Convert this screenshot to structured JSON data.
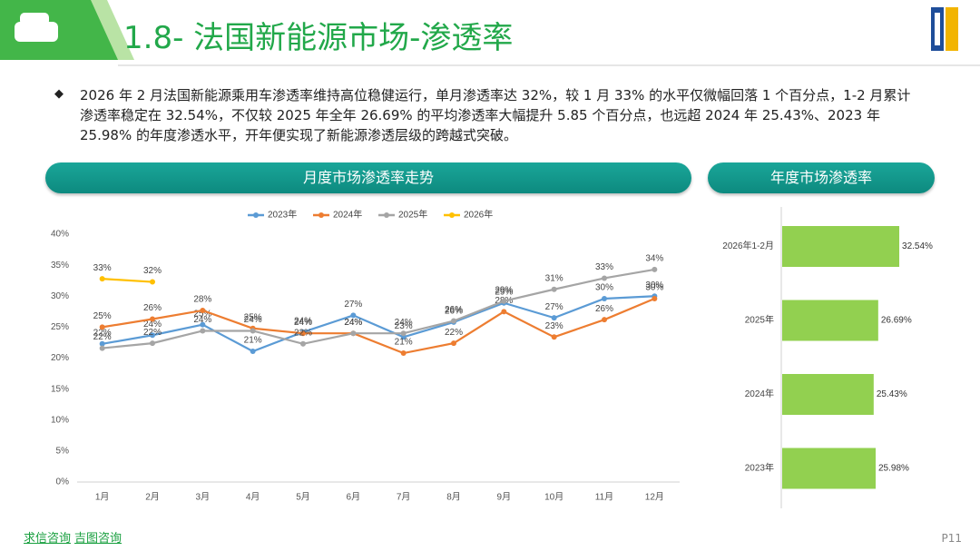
{
  "header": {
    "title": "1.8- 法国新能源市场-渗透率"
  },
  "summary": "2026 年 2 月法国新能源乘用车渗透率维持高位稳健运行，单月渗透率达 32%，较 1 月 33% 的水平仅微幅回落 1 个百分点，1-2 月累计渗透率稳定在 32.54%，不仅较 2025 年全年 26.69% 的平均渗透率大幅提升 5.85 个百分点，也远超 2024 年 25.43%、2023 年 25.98% 的年度渗透水平，开年便实现了新能源渗透层级的跨越式突破。",
  "panels": [
    "月度市场渗透率走势",
    "年度市场渗透率"
  ],
  "footer": {
    "links": [
      "求信咨询",
      "吉图咨询"
    ],
    "page": "P11"
  },
  "chart_data": [
    {
      "type": "line",
      "categories": [
        "1月",
        "2月",
        "3月",
        "4月",
        "5月",
        "6月",
        "7月",
        "8月",
        "9月",
        "10月",
        "11月",
        "12月"
      ],
      "series": [
        {
          "name": "2023年",
          "color": "#5b9bd5",
          "values": [
            22.3,
            23.7,
            25.4,
            21.1,
            24.2,
            26.9,
            23.4,
            25.8,
            28.9,
            26.5,
            29.6,
            30.0
          ],
          "value_labels": [
            "22%",
            "24%",
            "25%",
            "21%",
            "24%",
            "27%",
            "23%",
            "26%",
            "29%",
            "27%",
            "30%",
            "30%"
          ]
        },
        {
          "name": "2024年",
          "color": "#ed7d31",
          "values": [
            25.0,
            26.3,
            27.7,
            24.8,
            24.0,
            24.0,
            20.8,
            22.4,
            27.5,
            23.4,
            26.2,
            29.6
          ],
          "value_labels": [
            "25%",
            "26%",
            "28%",
            "25%",
            "24%",
            "24%",
            "21%",
            "22%",
            "28%",
            "23%",
            "26%",
            "30%"
          ]
        },
        {
          "name": "2025年",
          "color": "#a5a5a5",
          "values": [
            21.6,
            22.4,
            24.4,
            24.4,
            22.3,
            24.0,
            24.0,
            26.0,
            29.2,
            31.1,
            32.9,
            34.3
          ],
          "value_labels": [
            "22%",
            "22%",
            "24%",
            "24%",
            "22%",
            "24%",
            "24%",
            "26%",
            "29%",
            "31%",
            "33%",
            "34%"
          ]
        },
        {
          "name": "2026年",
          "color": "#ffc000",
          "values": [
            32.8,
            32.3,
            null,
            null,
            null,
            null,
            null,
            null,
            null,
            null,
            null,
            null
          ],
          "value_labels": [
            "33%",
            "32%",
            null,
            null,
            null,
            null,
            null,
            null,
            null,
            null,
            null,
            null
          ]
        }
      ],
      "ylim": [
        0,
        40
      ],
      "yticks": [
        {
          "value": 0,
          "label": "0%"
        },
        {
          "value": 5,
          "label": "5%"
        },
        {
          "value": 10,
          "label": "10%"
        },
        {
          "value": 15,
          "label": "15%"
        },
        {
          "value": 20,
          "label": "20%"
        },
        {
          "value": 25,
          "label": "25%"
        },
        {
          "value": 30,
          "label": "30%"
        },
        {
          "value": 35,
          "label": "35%"
        },
        {
          "value": 40,
          "label": "40%"
        }
      ],
      "legend": "top"
    },
    {
      "type": "hbar",
      "categories": [
        "2026年1-2月",
        "2025年",
        "2024年",
        "2023年"
      ],
      "values": [
        32.54,
        26.69,
        25.43,
        25.98
      ],
      "value_labels": [
        "32.54%",
        "26.69%",
        "25.43%",
        "25.98%"
      ],
      "color": "#92d050"
    }
  ]
}
